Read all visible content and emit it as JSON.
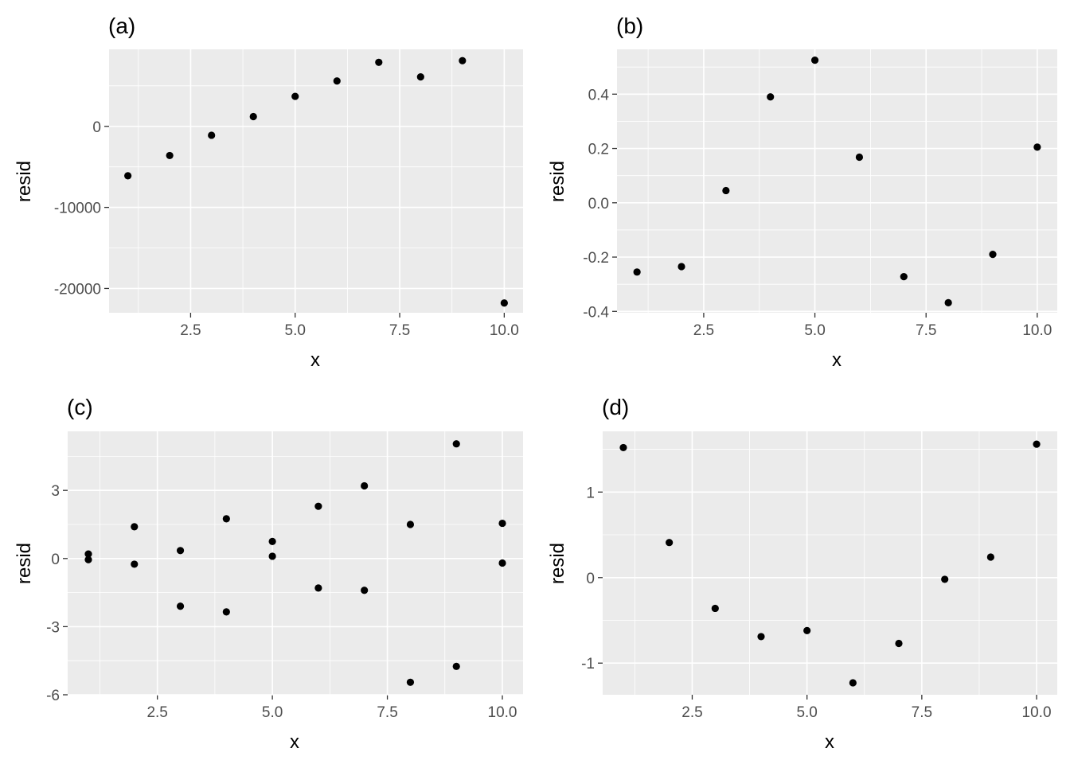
{
  "figure": {
    "background": "#FFFFFF",
    "panel_background": "#EBEBEB",
    "grid_color": "#FFFFFF",
    "point_color": "#000000"
  },
  "chart_data": [
    {
      "id": "a",
      "type": "scatter",
      "title": "(a)",
      "xlabel": "x",
      "ylabel": "resid",
      "xlim": [
        0.55,
        10.45
      ],
      "ylim": [
        -23000,
        9500
      ],
      "xticks": [
        2.5,
        5.0,
        7.5,
        10.0
      ],
      "xtick_labels": [
        "2.5",
        "5.0",
        "7.5",
        "10.0"
      ],
      "yticks": [
        -20000,
        -10000,
        0
      ],
      "ytick_labels": [
        "-20000",
        "-10000",
        "0"
      ],
      "points": [
        {
          "x": 1,
          "y": -6100
        },
        {
          "x": 2,
          "y": -3600
        },
        {
          "x": 3,
          "y": -1100
        },
        {
          "x": 4,
          "y": 1200
        },
        {
          "x": 5,
          "y": 3700
        },
        {
          "x": 6,
          "y": 5600
        },
        {
          "x": 7,
          "y": 7900
        },
        {
          "x": 8,
          "y": 6100
        },
        {
          "x": 9,
          "y": 8100
        },
        {
          "x": 10,
          "y": -21800
        }
      ]
    },
    {
      "id": "b",
      "type": "scatter",
      "title": "(b)",
      "xlabel": "x",
      "ylabel": "resid",
      "xlim": [
        0.55,
        10.45
      ],
      "ylim": [
        -0.405,
        0.565
      ],
      "xticks": [
        2.5,
        5.0,
        7.5,
        10.0
      ],
      "xtick_labels": [
        "2.5",
        "5.0",
        "7.5",
        "10.0"
      ],
      "yticks": [
        -0.4,
        -0.2,
        0.0,
        0.2,
        0.4
      ],
      "ytick_labels": [
        "-0.4",
        "-0.2",
        "0.0",
        "0.2",
        "0.4"
      ],
      "points": [
        {
          "x": 1,
          "y": -0.255
        },
        {
          "x": 2,
          "y": -0.235
        },
        {
          "x": 3,
          "y": 0.045
        },
        {
          "x": 4,
          "y": 0.39
        },
        {
          "x": 5,
          "y": 0.525
        },
        {
          "x": 6,
          "y": 0.168
        },
        {
          "x": 7,
          "y": -0.272
        },
        {
          "x": 8,
          "y": -0.368
        },
        {
          "x": 9,
          "y": -0.19
        },
        {
          "x": 10,
          "y": 0.205
        }
      ]
    },
    {
      "id": "c",
      "type": "scatter",
      "title": "(c)",
      "xlabel": "x",
      "ylabel": "resid",
      "xlim": [
        0.55,
        10.45
      ],
      "ylim": [
        -6.0,
        5.6
      ],
      "xticks": [
        2.5,
        5.0,
        7.5,
        10.0
      ],
      "xtick_labels": [
        "2.5",
        "5.0",
        "7.5",
        "10.0"
      ],
      "yticks": [
        -6,
        -3,
        0,
        3
      ],
      "ytick_labels": [
        "-6",
        "-3",
        "0",
        "3"
      ],
      "points": [
        {
          "x": 1,
          "y": 0.2
        },
        {
          "x": 1,
          "y": -0.05
        },
        {
          "x": 2,
          "y": 1.4
        },
        {
          "x": 2,
          "y": -0.25
        },
        {
          "x": 3,
          "y": 0.35
        },
        {
          "x": 3,
          "y": -2.1
        },
        {
          "x": 4,
          "y": 1.75
        },
        {
          "x": 4,
          "y": -2.35
        },
        {
          "x": 5,
          "y": 0.75
        },
        {
          "x": 5,
          "y": 0.1
        },
        {
          "x": 6,
          "y": 2.3
        },
        {
          "x": 6,
          "y": -1.3
        },
        {
          "x": 7,
          "y": 3.2
        },
        {
          "x": 7,
          "y": -1.4
        },
        {
          "x": 8,
          "y": 1.5
        },
        {
          "x": 8,
          "y": -5.45
        },
        {
          "x": 9,
          "y": 5.05
        },
        {
          "x": 9,
          "y": -4.75
        },
        {
          "x": 10,
          "y": 1.55
        },
        {
          "x": 10,
          "y": -0.2
        }
      ]
    },
    {
      "id": "d",
      "type": "scatter",
      "title": "(d)",
      "xlabel": "x",
      "ylabel": "resid",
      "xlim": [
        0.55,
        10.45
      ],
      "ylim": [
        -1.37,
        1.71
      ],
      "xticks": [
        2.5,
        5.0,
        7.5,
        10.0
      ],
      "xtick_labels": [
        "2.5",
        "5.0",
        "7.5",
        "10.0"
      ],
      "yticks": [
        -1,
        0,
        1
      ],
      "ytick_labels": [
        "-1",
        "0",
        "1"
      ],
      "points": [
        {
          "x": 1,
          "y": 1.52
        },
        {
          "x": 2,
          "y": 0.41
        },
        {
          "x": 3,
          "y": -0.36
        },
        {
          "x": 4,
          "y": -0.69
        },
        {
          "x": 5,
          "y": -0.62
        },
        {
          "x": 6,
          "y": -1.23
        },
        {
          "x": 7,
          "y": -0.77
        },
        {
          "x": 8,
          "y": -0.02
        },
        {
          "x": 9,
          "y": 0.24
        },
        {
          "x": 10,
          "y": 1.56
        }
      ]
    }
  ]
}
